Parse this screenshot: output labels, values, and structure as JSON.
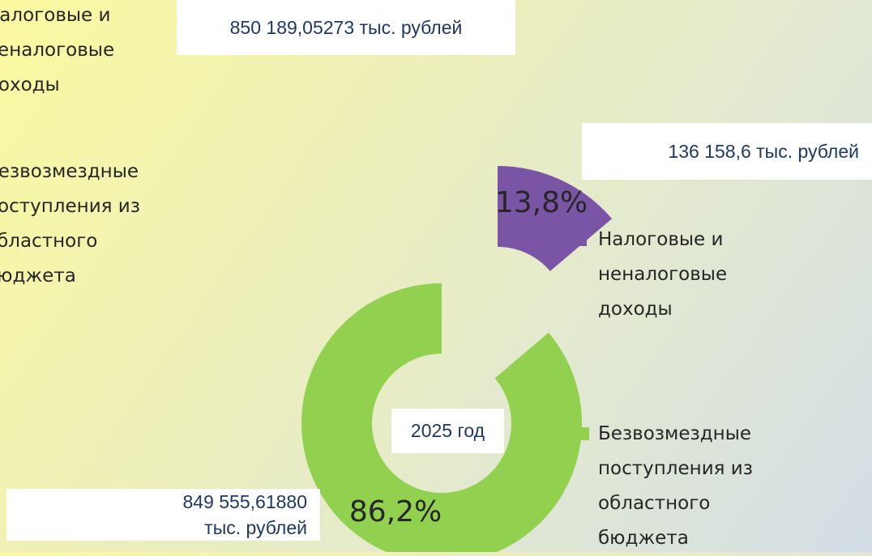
{
  "chart_data": {
    "type": "pie",
    "title": "2025 год",
    "categories": [
      "Налоговые и неналоговые доходы",
      "Безвозмездные поступления из областного бюджета"
    ],
    "values": [
      13.8,
      86.2
    ],
    "value_labels": [
      "13,8%",
      "86,2%"
    ],
    "colors": [
      "#7a55a6",
      "#92d050"
    ],
    "annotations": [
      "850 189,05273 тыс. рублей",
      "136 158,6 тыс. рублей",
      "849 555,61880 тыс. рублей"
    ]
  }
}
